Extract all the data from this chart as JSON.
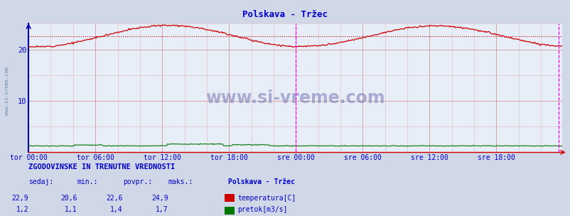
{
  "title": "Polskava - Tržec",
  "title_color": "#0000cc",
  "bg_color": "#d0d8e8",
  "plot_bg_color": "#e8eef8",
  "x_labels": [
    "tor 00:00",
    "tor 06:00",
    "tor 12:00",
    "tor 18:00",
    "sre 00:00",
    "sre 06:00",
    "sre 12:00",
    "sre 18:00"
  ],
  "x_ticks_pos": [
    0,
    72,
    144,
    216,
    288,
    360,
    432,
    504
  ],
  "total_points": 576,
  "y_min": 0,
  "y_max": 25,
  "y_ticks": [
    10,
    20
  ],
  "temp_color": "#cc0000",
  "flow_color": "#007700",
  "temp_avg": 22.6,
  "temp_min": 20.6,
  "temp_max": 24.9,
  "temp_current": 22.9,
  "flow_avg": 1.4,
  "flow_min": 1.1,
  "flow_max": 1.7,
  "flow_current": 1.2,
  "watermark": "www.si-vreme.com",
  "watermark_color": "#8888bb",
  "label_color": "#0000cc",
  "grid_color_major": "#cc9999",
  "grid_color_minor": "#ddbbbb",
  "vline_color": "#ff00ff",
  "vline_pos": 288,
  "right_vline_pos": 571,
  "dotted_line_value": 22.6,
  "sidebar_text": "www.si-vreme.com",
  "sidebar_color": "#6688aa",
  "legend_title": "Polskava - Tržec",
  "legend_items": [
    "temperatura[C]",
    "pretok[m3/s]"
  ],
  "legend_colors": [
    "#cc0000",
    "#007700"
  ],
  "stats_title": "ZGODOVINSKE IN TRENUTNE VREDNOSTI",
  "stats_headers": [
    "sedaj:",
    "min.:",
    "povpr.:",
    "maks.:"
  ],
  "stats_temp": [
    "22,9",
    "20,6",
    "22,6",
    "24,9"
  ],
  "stats_flow": [
    "1,2",
    "1,1",
    "1,4",
    "1,7"
  ],
  "left_spine_color": "#0000bb",
  "bottom_spine_color": "#cc0000"
}
